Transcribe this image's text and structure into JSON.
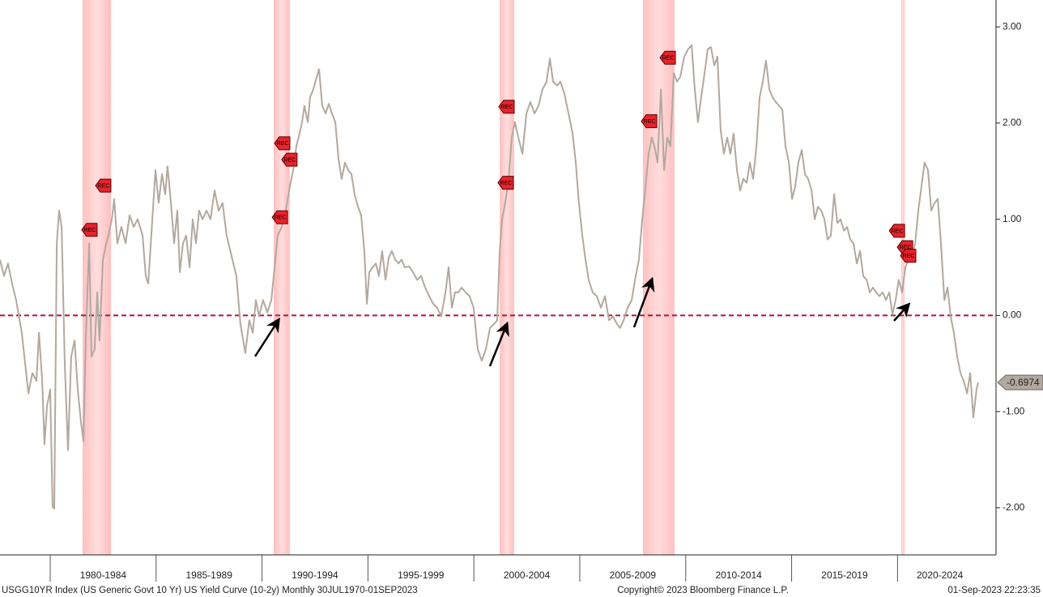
{
  "chart_data": {
    "type": "line",
    "color": "#b3a89e",
    "recession_color": "#ff9a9a",
    "reference_line": {
      "value": 0,
      "color": "#b5123a"
    },
    "xlim": [
      1977.63,
      2024.65
    ],
    "ylim": [
      -2.49,
      3.28
    ],
    "xticks": [
      1980,
      1985,
      1990,
      1995,
      2000,
      2005,
      2010,
      2015,
      2020
    ],
    "xtick_labels": [
      {
        "value": 1982.5,
        "label": "1980-1984"
      },
      {
        "value": 1987.5,
        "label": "1985-1989"
      },
      {
        "value": 1992.5,
        "label": "1990-1994"
      },
      {
        "value": 1997.5,
        "label": "1995-1999"
      },
      {
        "value": 2002.5,
        "label": "2000-2004"
      },
      {
        "value": 2007.5,
        "label": "2005-2009"
      },
      {
        "value": 2012.5,
        "label": "2010-2014"
      },
      {
        "value": 2017.5,
        "label": "2015-2019"
      },
      {
        "value": 2022,
        "label": "2020-2024"
      }
    ],
    "yticks": [
      {
        "value": 3,
        "label": "3.00"
      },
      {
        "value": 2,
        "label": "2.00"
      },
      {
        "value": 1,
        "label": "1.00"
      },
      {
        "value": 0,
        "label": "0.00"
      },
      {
        "value": -1,
        "label": "-1.00"
      },
      {
        "value": -2,
        "label": "-2.00"
      }
    ],
    "recessions": [
      [
        1981.53,
        1982.87
      ],
      [
        1990.55,
        1991.31
      ],
      [
        2001.22,
        2001.9
      ],
      [
        2007.98,
        2009.47
      ],
      [
        2020.18,
        2020.33
      ]
    ],
    "rec_label": "REC",
    "rec_markers": [
      {
        "x": 1981.87,
        "y": 0.89
      },
      {
        "x": 1982.52,
        "y": 1.35
      },
      {
        "x": 1990.97,
        "y": 1.79
      },
      {
        "x": 1991.31,
        "y": 1.62
      },
      {
        "x": 1990.86,
        "y": 1.02
      },
      {
        "x": 2001.56,
        "y": 2.17
      },
      {
        "x": 2001.52,
        "y": 1.38
      },
      {
        "x": 2008.29,
        "y": 2.02
      },
      {
        "x": 2009.17,
        "y": 2.68
      },
      {
        "x": 2019.99,
        "y": 0.88
      },
      {
        "x": 2020.37,
        "y": 0.71
      },
      {
        "x": 2020.52,
        "y": 0.62
      }
    ],
    "last_value": {
      "value": -0.6974,
      "label": "-0.6974"
    },
    "footer_left": "USGG10YR Index (US Generic Govt 10 Yr) US Yield Curve (10-2y)  Monthly 30JUL1970-01SEP2023",
    "footer_center": "Copyright© 2023 Bloomberg Finance L.P.",
    "footer_right": "01-Sep-2023 22:23:35",
    "x": [
      1977.63,
      1977.82,
      1978.01,
      1978.2,
      1978.39,
      1978.66,
      1978.97,
      1979.16,
      1979.35,
      1979.47,
      1979.62,
      1979.73,
      1979.85,
      1980.0,
      1980.11,
      1980.19,
      1980.31,
      1980.42,
      1980.54,
      1980.69,
      1980.84,
      1980.99,
      1981.15,
      1981.3,
      1981.45,
      1981.57,
      1981.68,
      1981.84,
      1981.95,
      1982.1,
      1982.22,
      1982.33,
      1982.49,
      1982.64,
      1982.75,
      1982.91,
      1983.02,
      1983.17,
      1983.36,
      1983.56,
      1983.75,
      1983.94,
      1984.13,
      1984.36,
      1984.51,
      1984.63,
      1984.82,
      1984.97,
      1985.12,
      1985.28,
      1985.43,
      1985.54,
      1985.7,
      1985.85,
      1986.0,
      1986.12,
      1986.27,
      1986.42,
      1986.58,
      1986.73,
      1986.88,
      1987.03,
      1987.19,
      1987.38,
      1987.57,
      1987.76,
      1987.95,
      1988.14,
      1988.33,
      1988.6,
      1988.79,
      1988.98,
      1989.21,
      1989.4,
      1989.56,
      1989.71,
      1989.86,
      1990.05,
      1990.25,
      1990.44,
      1990.55,
      1990.74,
      1990.93,
      1991.12,
      1991.31,
      1991.47,
      1991.62,
      1991.77,
      1991.89,
      1992.0,
      1992.16,
      1992.27,
      1992.42,
      1992.58,
      1992.69,
      1992.84,
      1993.0,
      1993.15,
      1993.3,
      1993.46,
      1993.61,
      1993.76,
      1993.92,
      1994.07,
      1994.22,
      1994.37,
      1994.53,
      1994.68,
      1994.83,
      1994.95,
      1995.06,
      1995.22,
      1995.37,
      1995.52,
      1995.67,
      1995.83,
      1995.98,
      1996.13,
      1996.29,
      1996.44,
      1996.59,
      1996.74,
      1996.94,
      1997.13,
      1997.32,
      1997.51,
      1997.7,
      1997.89,
      1998.08,
      1998.27,
      1998.46,
      1998.66,
      1998.81,
      1998.96,
      1999.11,
      1999.27,
      1999.42,
      1999.61,
      1999.8,
      1999.99,
      2000.18,
      2000.37,
      2000.57,
      2000.76,
      2000.95,
      2001.1,
      2001.22,
      2001.33,
      2001.48,
      2001.64,
      2001.79,
      2001.94,
      2002.1,
      2002.29,
      2002.48,
      2002.67,
      2002.86,
      2003.05,
      2003.24,
      2003.43,
      2003.59,
      2003.74,
      2003.93,
      2004.08,
      2004.27,
      2004.47,
      2004.66,
      2004.81,
      2004.96,
      2005.12,
      2005.27,
      2005.42,
      2005.61,
      2005.8,
      2006.0,
      2006.19,
      2006.38,
      2006.57,
      2006.76,
      2006.91,
      2007.07,
      2007.26,
      2007.45,
      2007.64,
      2007.79,
      2007.95,
      2008.1,
      2008.25,
      2008.4,
      2008.52,
      2008.67,
      2008.83,
      2008.98,
      2009.13,
      2009.28,
      2009.44,
      2009.59,
      2009.74,
      2009.93,
      2010.12,
      2010.28,
      2010.43,
      2010.58,
      2010.73,
      2010.89,
      2011.04,
      2011.19,
      2011.35,
      2011.5,
      2011.65,
      2011.8,
      2011.96,
      2012.11,
      2012.26,
      2012.42,
      2012.57,
      2012.72,
      2012.88,
      2013.03,
      2013.18,
      2013.34,
      2013.49,
      2013.64,
      2013.79,
      2013.95,
      2014.1,
      2014.25,
      2014.41,
      2014.56,
      2014.71,
      2014.87,
      2015.02,
      2015.17,
      2015.32,
      2015.48,
      2015.63,
      2015.78,
      2015.94,
      2016.09,
      2016.24,
      2016.4,
      2016.55,
      2016.7,
      2016.85,
      2017.01,
      2017.16,
      2017.31,
      2017.47,
      2017.62,
      2017.77,
      2017.92,
      2018.08,
      2018.23,
      2018.38,
      2018.54,
      2018.69,
      2018.84,
      2018.99,
      2019.15,
      2019.3,
      2019.45,
      2019.61,
      2019.76,
      2019.91,
      2020.06,
      2020.22,
      2020.37,
      2020.52,
      2020.67,
      2020.83,
      2020.98,
      2021.13,
      2021.28,
      2021.44,
      2021.59,
      2021.75,
      2021.9,
      2022.05,
      2022.21,
      2022.36,
      2022.51,
      2022.66,
      2022.82,
      2022.97,
      2023.12,
      2023.28,
      2023.43,
      2023.58,
      2023.73,
      2023.81
    ],
    "values": [
      0.58,
      0.41,
      0.54,
      0.33,
      0.16,
      -0.18,
      -0.81,
      -0.6,
      -0.68,
      -0.18,
      -0.68,
      -1.34,
      -0.94,
      -0.77,
      -1.99,
      -2.01,
      0.75,
      1.09,
      0.92,
      -0.51,
      -1.4,
      -0.43,
      -0.26,
      -0.77,
      -1.1,
      -1.31,
      -0.26,
      0.75,
      -0.43,
      -0.35,
      0.24,
      -0.26,
      0.58,
      0.75,
      0.83,
      1.0,
      1.21,
      0.75,
      0.92,
      0.75,
      1.04,
      0.92,
      1.0,
      0.83,
      0.41,
      0.33,
      1.0,
      1.51,
      1.17,
      1.47,
      1.26,
      1.55,
      1.17,
      0.75,
      1.09,
      0.45,
      0.75,
      0.83,
      0.5,
      1.0,
      0.75,
      1.09,
      1.0,
      1.09,
      1.0,
      1.3,
      1.09,
      1.17,
      0.83,
      0.58,
      0.41,
      -0.09,
      -0.39,
      -0.05,
      -0.18,
      0.16,
      -0.01,
      0.16,
      0.03,
      0.16,
      0.41,
      0.83,
      0.92,
      1.09,
      1.34,
      1.51,
      1.76,
      1.89,
      2.01,
      2.18,
      2.01,
      2.27,
      2.35,
      2.48,
      2.56,
      2.18,
      2.1,
      2.2,
      2.1,
      2.01,
      1.63,
      1.42,
      1.59,
      1.51,
      1.47,
      1.26,
      1.13,
      1.04,
      0.67,
      0.12,
      0.45,
      0.5,
      0.54,
      0.41,
      0.67,
      0.37,
      0.6,
      0.67,
      0.58,
      0.54,
      0.58,
      0.5,
      0.51,
      0.45,
      0.37,
      0.41,
      0.29,
      0.2,
      0.12,
      0.08,
      -0.01,
      0.24,
      0.5,
      0.08,
      0.24,
      0.24,
      0.29,
      0.24,
      0.2,
      0.08,
      -0.35,
      -0.47,
      -0.35,
      -0.13,
      -0.09,
      -0.05,
      0.67,
      1.0,
      1.17,
      1.42,
      1.85,
      2.01,
      1.85,
      1.68,
      2.1,
      2.22,
      2.1,
      2.18,
      2.35,
      2.43,
      2.67,
      2.43,
      2.39,
      2.43,
      2.31,
      2.1,
      1.89,
      1.59,
      1.17,
      0.83,
      0.58,
      0.37,
      0.24,
      0.2,
      0.08,
      0.2,
      -0.05,
      -0.01,
      -0.09,
      -0.13,
      -0.05,
      0.08,
      0.16,
      0.41,
      0.58,
      1.0,
      1.34,
      1.68,
      1.85,
      1.76,
      1.59,
      2.35,
      1.51,
      1.85,
      1.76,
      2.52,
      2.43,
      2.48,
      2.69,
      2.77,
      2.81,
      2.35,
      2.01,
      2.27,
      2.52,
      2.77,
      2.79,
      2.6,
      2.69,
      1.93,
      1.68,
      1.85,
      1.68,
      1.89,
      1.51,
      1.3,
      1.42,
      1.38,
      1.59,
      1.42,
      1.76,
      2.27,
      2.43,
      2.65,
      2.35,
      2.27,
      2.22,
      2.18,
      2.14,
      1.76,
      1.59,
      1.21,
      1.34,
      1.59,
      1.72,
      1.47,
      1.42,
      1.3,
      1.0,
      1.13,
      1.09,
      1.0,
      0.79,
      0.83,
      1.26,
      0.96,
      1.0,
      0.88,
      0.92,
      0.79,
      0.75,
      0.54,
      0.67,
      0.41,
      0.37,
      0.24,
      0.29,
      0.24,
      0.2,
      0.24,
      0.16,
      0.24,
      0.01,
      0.16,
      0.37,
      0.24,
      0.5,
      0.58,
      0.58,
      0.75,
      1.09,
      1.34,
      1.59,
      1.51,
      1.09,
      1.17,
      1.21,
      0.75,
      0.16,
      0.29,
      -0.01,
      -0.18,
      -0.43,
      -0.6,
      -0.68,
      -0.81,
      -0.6,
      -1.06,
      -0.77,
      -0.6974
    ]
  }
}
